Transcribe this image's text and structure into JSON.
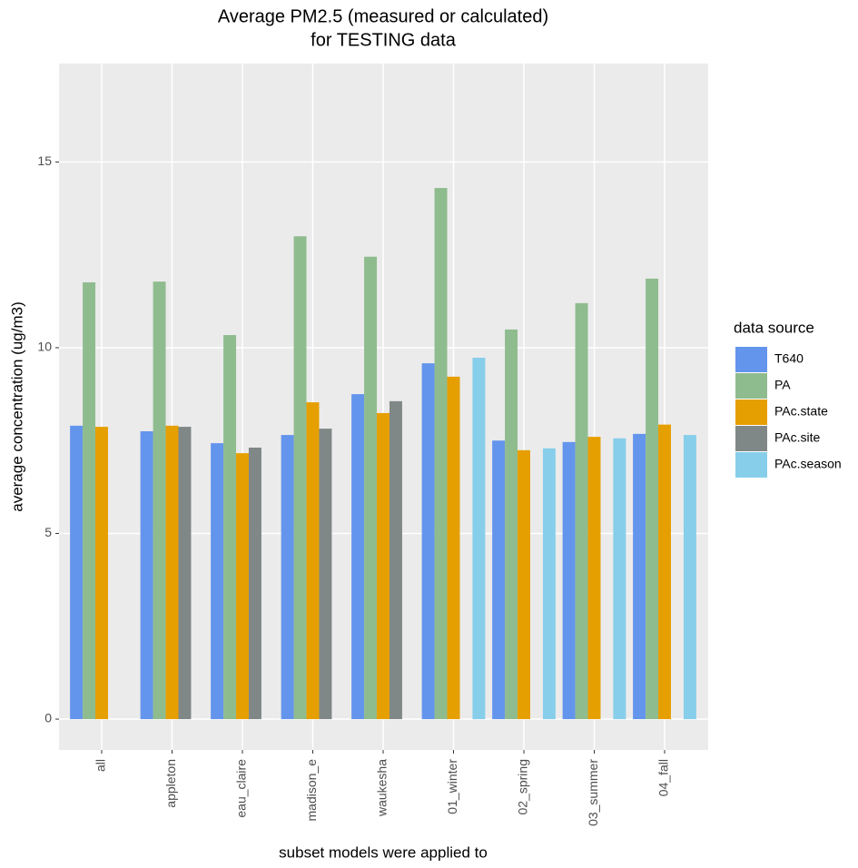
{
  "chart_data": {
    "type": "bar",
    "title": [
      "Average PM2.5 (measured or calculated)",
      "for TESTING data"
    ],
    "x_label": "subset models were applied to",
    "y_label": "average concentration (ug/m3)",
    "legend_title": "data source",
    "categories": [
      "all",
      "appleton",
      "eau_claire",
      "madison_e",
      "waukesha",
      "01_winter",
      "02_spring",
      "03_summer",
      "04_fall"
    ],
    "series": [
      {
        "name": "T640",
        "color": "#6495ED",
        "values": [
          7.9,
          7.75,
          7.43,
          7.65,
          8.75,
          9.58,
          7.5,
          7.46,
          7.68
        ]
      },
      {
        "name": "PA",
        "color": "#8FBC8F",
        "values": [
          11.76,
          11.78,
          10.34,
          13.0,
          12.45,
          14.3,
          10.49,
          11.2,
          11.86
        ]
      },
      {
        "name": "PAc.state",
        "color": "#E69F00",
        "values": [
          7.87,
          7.9,
          7.16,
          8.53,
          8.24,
          9.22,
          7.24,
          7.6,
          7.93
        ]
      },
      {
        "name": "PAc.site",
        "color": "#808787",
        "values": [
          null,
          7.87,
          7.31,
          7.82,
          8.56,
          null,
          null,
          null,
          null
        ]
      },
      {
        "name": "PAc.season",
        "color": "#87CEEB",
        "values": [
          null,
          null,
          null,
          null,
          null,
          9.73,
          7.29,
          7.56,
          7.65
        ]
      }
    ],
    "ylim": [
      -0.83,
      17.65
    ],
    "yticks": [
      0,
      5,
      10,
      15
    ],
    "grid": true,
    "legend": "right"
  }
}
